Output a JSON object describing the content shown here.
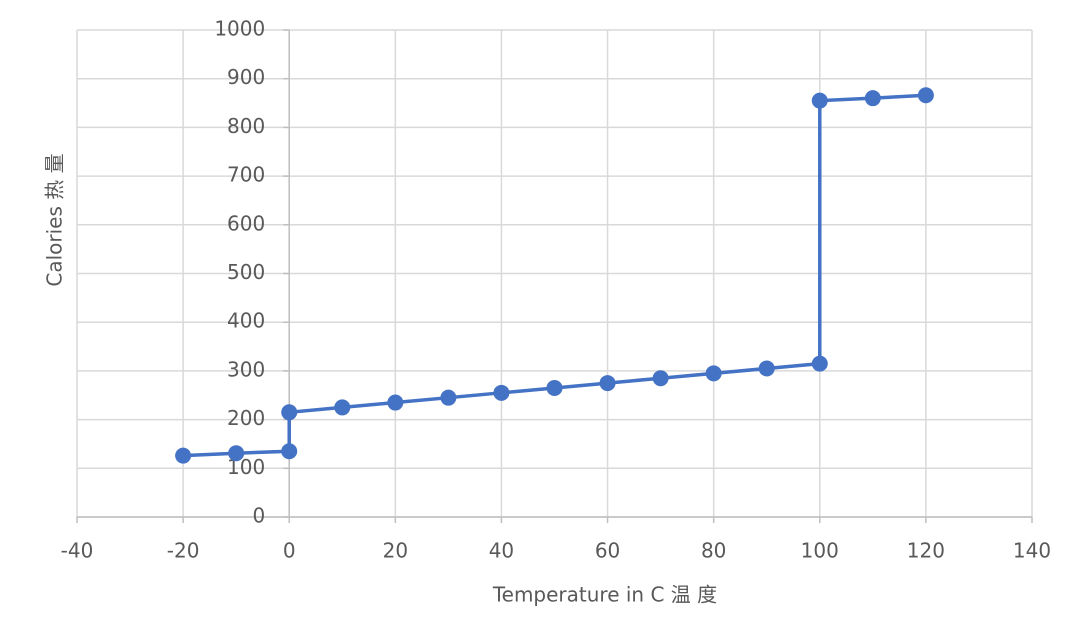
{
  "chart_data": {
    "type": "line",
    "x_label": "Temperature in C  温 度",
    "y_label": "Calories  热 量",
    "series": [
      {
        "name": "Calories",
        "color": "#4472c4",
        "x": [
          -20,
          -10,
          0,
          0,
          10,
          20,
          30,
          40,
          50,
          60,
          70,
          80,
          90,
          100,
          100,
          110,
          120
        ],
        "values": [
          126,
          131,
          135,
          215,
          225,
          235,
          245,
          255,
          265,
          275,
          285,
          295,
          305,
          315,
          855,
          860,
          866
        ]
      }
    ],
    "xlim": [
      -40,
      140
    ],
    "xticks": [
      -40,
      -20,
      0,
      20,
      40,
      60,
      80,
      100,
      120,
      140
    ],
    "ylim": [
      0,
      1000
    ],
    "yticks": [
      0,
      100,
      200,
      300,
      400,
      500,
      600,
      700,
      800,
      900,
      1000
    ],
    "grid": true
  }
}
